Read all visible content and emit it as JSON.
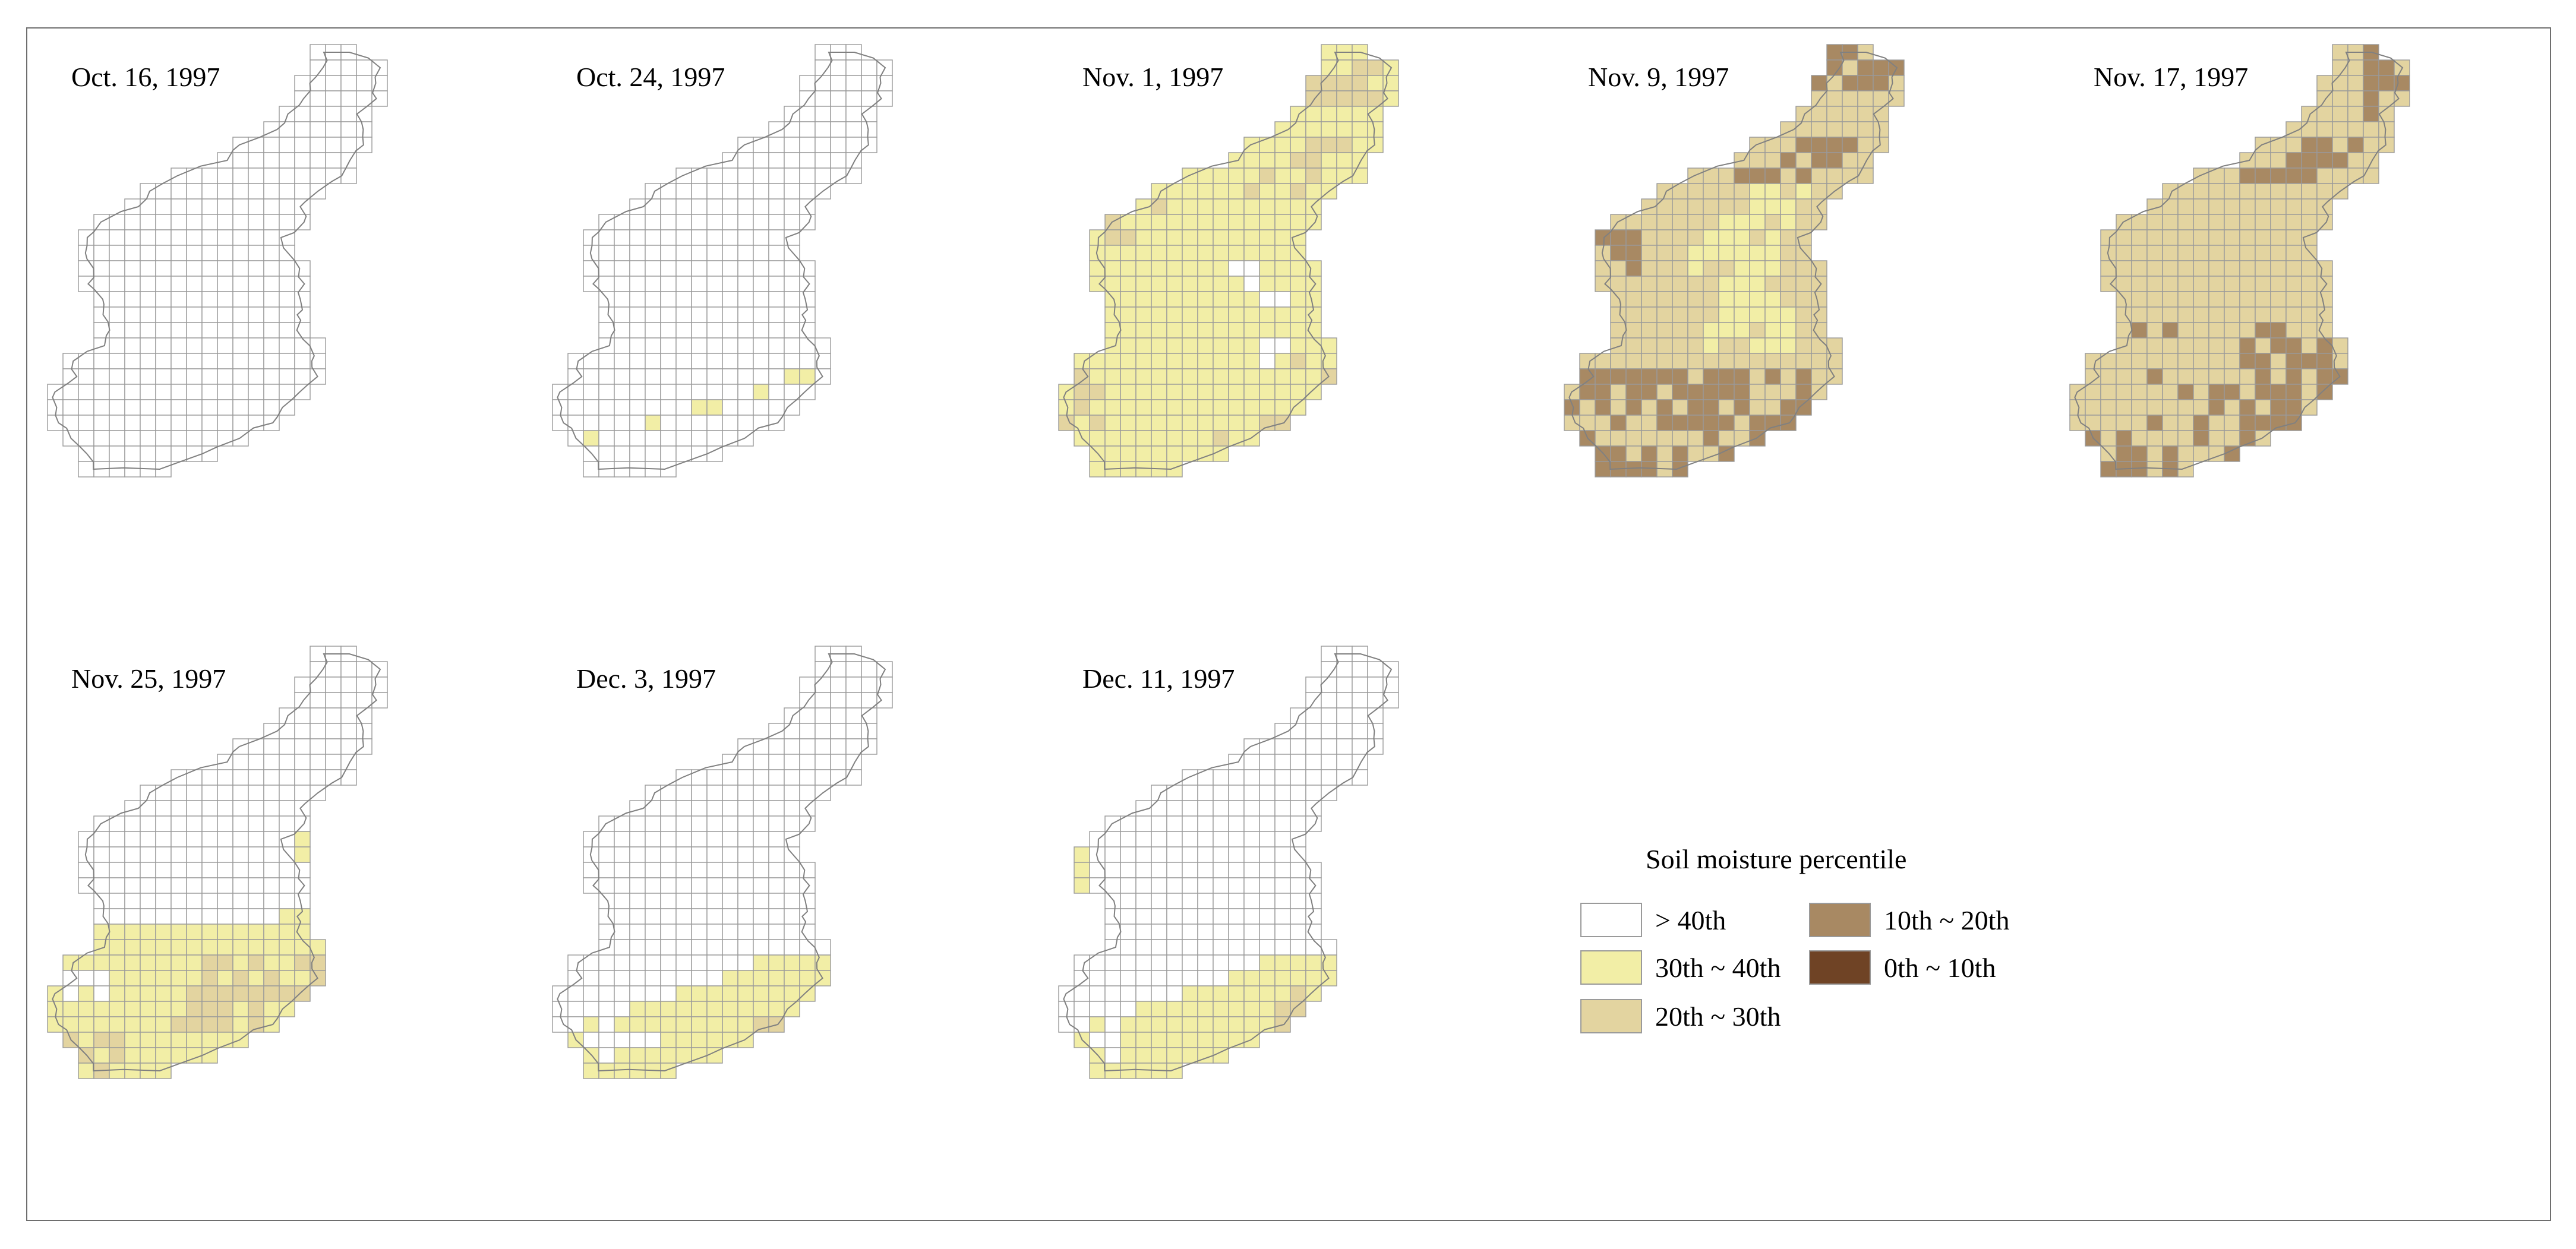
{
  "figure": {
    "legend": {
      "title": "Soil moisture percentile",
      "classes": [
        {
          "label": "> 40th",
          "color": "#ffffff"
        },
        {
          "label": "30th ~ 40th",
          "color": "#f2eea6"
        },
        {
          "label": "20th ~ 30th",
          "color": "#e3d4a0"
        },
        {
          "label": "10th ~ 20th",
          "color": "#a88963"
        },
        {
          "label": "0th ~ 10th",
          "color": "#6f4325"
        }
      ]
    },
    "panels": [
      {
        "date": "Oct. 16, 1997",
        "mode": "none",
        "start": 0,
        "extra": [],
        "holes": []
      },
      {
        "date": "Oct. 24, 1997",
        "mode": "early",
        "start": 0,
        "extra": [],
        "holes": []
      },
      {
        "date": "Nov. 1, 1997",
        "mode": "wet",
        "start": 0,
        "extra": [],
        "holes": [
          [
            14,
            11
          ],
          [
            14,
            12
          ],
          [
            15,
            12
          ],
          [
            16,
            13
          ],
          [
            16,
            14
          ],
          [
            19,
            13
          ],
          [
            19,
            14
          ],
          [
            20,
            13
          ]
        ]
      },
      {
        "date": "Nov. 9, 1997",
        "mode": "dry",
        "start": 0,
        "extra": [],
        "holes": []
      },
      {
        "date": "Nov. 17, 1997",
        "mode": "drier",
        "start": 0,
        "extra": [],
        "holes": []
      },
      {
        "date": "Nov. 25, 1997",
        "mode": "recover",
        "start": 17,
        "extra": [
          [
            9,
            15
          ],
          [
            9,
            16
          ],
          [
            10,
            15
          ],
          [
            10,
            16
          ],
          [
            11,
            16
          ],
          [
            12,
            16
          ],
          [
            13,
            16
          ],
          [
            14,
            16
          ]
        ],
        "holes": [
          [
            21,
            2
          ],
          [
            21,
            3
          ]
        ]
      },
      {
        "date": "Dec. 3, 1997",
        "mode": "recover2",
        "start": 20,
        "extra": [],
        "holes": [
          [
            25,
            2
          ],
          [
            25,
            3
          ],
          [
            25,
            4
          ],
          [
            24,
            3
          ],
          [
            26,
            3
          ],
          [
            25,
            5
          ],
          [
            25,
            6
          ]
        ]
      },
      {
        "date": "Dec. 11, 1997",
        "mode": "recover2",
        "start": 20,
        "extra": [
          [
            13,
            1
          ],
          [
            14,
            1
          ],
          [
            15,
            1
          ],
          [
            13,
            2
          ]
        ],
        "holes": [
          [
            25,
            2
          ],
          [
            25,
            3
          ],
          [
            24,
            3
          ],
          [
            26,
            3
          ]
        ]
      }
    ]
  }
}
